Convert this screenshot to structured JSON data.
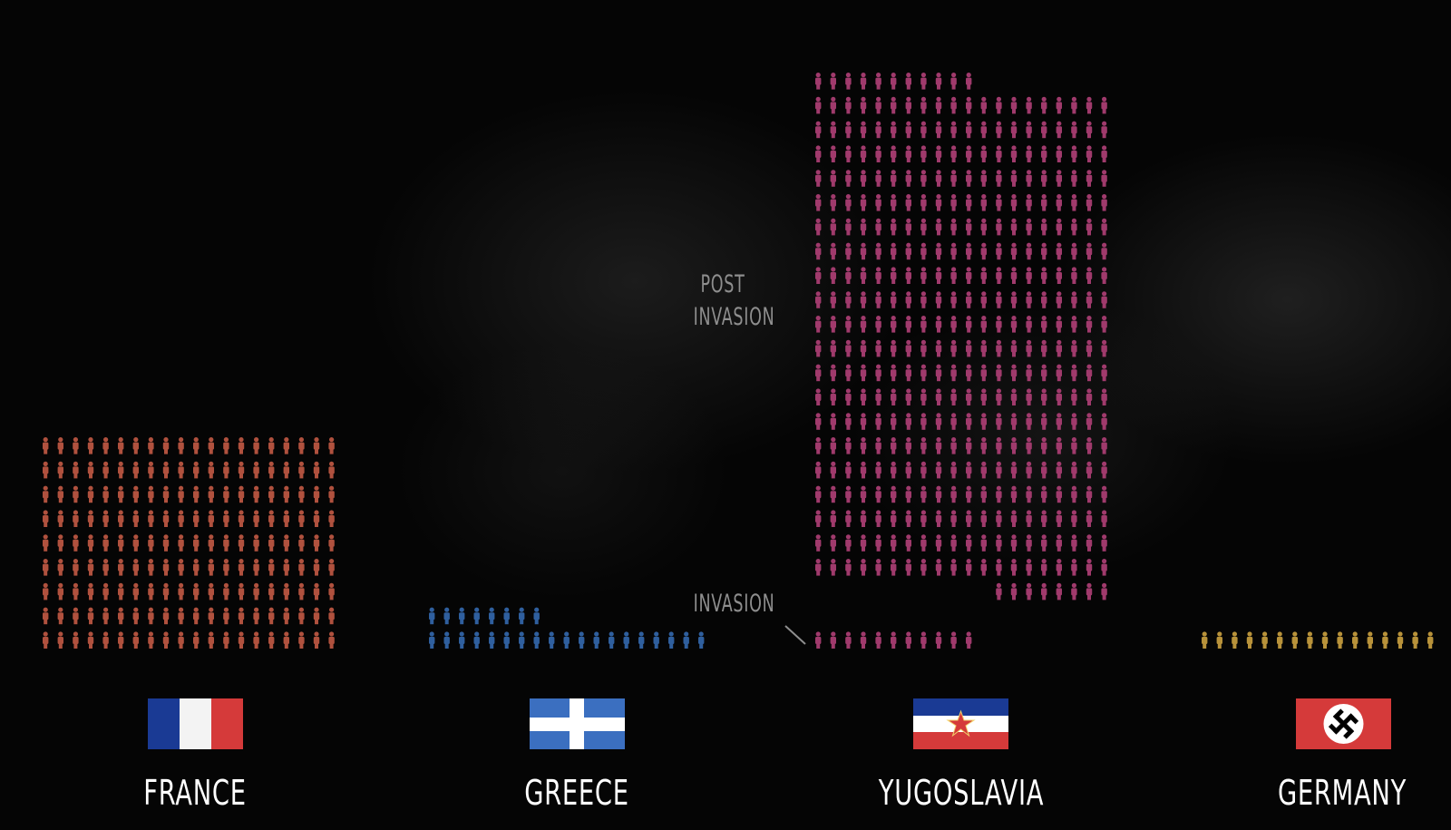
{
  "chart_data": {
    "type": "pictogram",
    "annotations": {
      "post_invasion": "POST\nINVASION",
      "invasion": "INVASION"
    },
    "countries": [
      {
        "name": "FRANCE",
        "color": "#b0513e",
        "pre_invasion": 0,
        "post_invasion": 180
      },
      {
        "name": "GREECE",
        "color": "#2f5f9e",
        "pre_invasion": 27,
        "post_invasion": 0
      },
      {
        "name": "YUGOSLAVIA",
        "color": "#a03a6c",
        "pre_invasion": 11,
        "post_invasion": 419
      },
      {
        "name": "GERMANY",
        "color": "#b8923a",
        "pre_invasion": 16,
        "post_invasion": 0
      }
    ]
  },
  "flags": {
    "france": {
      "colors": [
        "#1a3a94",
        "#f3f3f3",
        "#d53a3a"
      ]
    },
    "greece": {
      "colors": [
        "#3b6fc0",
        "#ffffff"
      ]
    },
    "yugoslavia": {
      "colors": [
        "#1a3a94",
        "#ffffff",
        "#d53a3a"
      ],
      "star": "#d53a3a"
    },
    "germany": {
      "colors": [
        "#d53a3a",
        "#ffffff",
        "#000000"
      ],
      "symbol": "swastika-icon"
    }
  },
  "colors": {
    "annotation": "#8e8e8e",
    "label": "#ffffff",
    "background": "#050505"
  }
}
